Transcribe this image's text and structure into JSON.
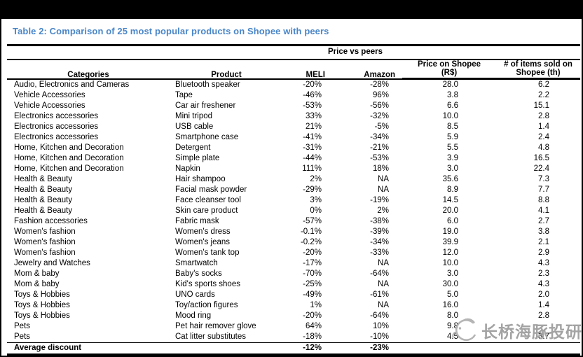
{
  "title": "Table 2: Comparison of 25 most popular products on Shopee with peers",
  "colors": {
    "title_blue": "#4a86c8",
    "watermark_gray": "#a3a3a3",
    "border_black": "#000000"
  },
  "table": {
    "group_header": "Price vs peers",
    "header": {
      "categories": "Categories",
      "product": "Product",
      "meli": "MELI",
      "amazon": "Amazon",
      "price_line1": "Price on Shopee",
      "price_line2": "(R$)",
      "items_line1": "# of items sold on",
      "items_line2": "Shopee (th)"
    },
    "rows": [
      [
        "Audio, Electronics and Cameras",
        "Bluetooth speaker",
        "-20%",
        "-28%",
        "28.0",
        "6.2"
      ],
      [
        "Vehicle Accessories",
        "Tape",
        "-46%",
        "96%",
        "3.8",
        "2.2"
      ],
      [
        "Vehicle Accessories",
        "Car air freshener",
        "-53%",
        "-56%",
        "6.6",
        "15.1"
      ],
      [
        "Electronics accessories",
        "Mini tripod",
        "33%",
        "-32%",
        "10.0",
        "2.8"
      ],
      [
        "Electronics accessories",
        "USB cable",
        "21%",
        "-5%",
        "8.5",
        "1.4"
      ],
      [
        "Electronics accessories",
        "Smartphone case",
        "-41%",
        "-34%",
        "5.9",
        "2.4"
      ],
      [
        "Home, Kitchen and Decoration",
        "Detergent",
        "-31%",
        "-21%",
        "5.5",
        "4.8"
      ],
      [
        "Home, Kitchen and Decoration",
        "Simple plate",
        "-44%",
        "-53%",
        "3.9",
        "16.5"
      ],
      [
        "Home, Kitchen and Decoration",
        "Napkin",
        "111%",
        "18%",
        "3.0",
        "22.4"
      ],
      [
        "Health & Beauty",
        "Hair shampoo",
        "2%",
        "NA",
        "35.6",
        "7.3"
      ],
      [
        "Health & Beauty",
        "Facial mask powder",
        "-29%",
        "NA",
        "8.9",
        "7.7"
      ],
      [
        "Health & Beauty",
        "Face cleanser tool",
        "3%",
        "-19%",
        "14.5",
        "8.8"
      ],
      [
        "Health & Beauty",
        "Skin care product",
        "0%",
        "2%",
        "20.0",
        "4.1"
      ],
      [
        "Fashion accessories",
        "Fabric mask",
        "-57%",
        "-38%",
        "6.0",
        "2.7"
      ],
      [
        "Women's fashion",
        "Women's dress",
        "-0.1%",
        "-39%",
        "19.0",
        "3.8"
      ],
      [
        "Women's fashion",
        "Women's jeans",
        "-0.2%",
        "-34%",
        "39.9",
        "2.1"
      ],
      [
        "Women's fashion",
        "Women's tank top",
        "-20%",
        "-33%",
        "12.0",
        "2.9"
      ],
      [
        "Jewelry and Watches",
        "Smartwatch",
        "-17%",
        "NA",
        "10.0",
        "4.3"
      ],
      [
        "Mom & baby",
        "Baby's socks",
        "-70%",
        "-64%",
        "3.0",
        "2.3"
      ],
      [
        "Mom & baby",
        "Kid's sports shoes",
        "-25%",
        "NA",
        "30.0",
        "4.3"
      ],
      [
        "Toys & Hobbies",
        "UNO cards",
        "-49%",
        "-61%",
        "5.0",
        "2.0"
      ],
      [
        "Toys & Hobbies",
        "Toy/action figures",
        "1%",
        "NA",
        "16.0",
        "1.4"
      ],
      [
        "Toys & Hobbies",
        "Mood ring",
        "-20%",
        "-64%",
        "8.0",
        "2.8"
      ],
      [
        "Pets",
        "Pet hair remover glove",
        "64%",
        "10%",
        "9.8",
        ""
      ],
      [
        "Pets",
        "Cat litter substitutes",
        "-18%",
        "-10%",
        "4.5",
        "3.7"
      ]
    ],
    "footer": {
      "label": "Average discount",
      "meli": "-12%",
      "amazon": "-23%"
    }
  },
  "watermark": {
    "text": "长桥海豚投研",
    "logo": "dolphin-logo"
  }
}
